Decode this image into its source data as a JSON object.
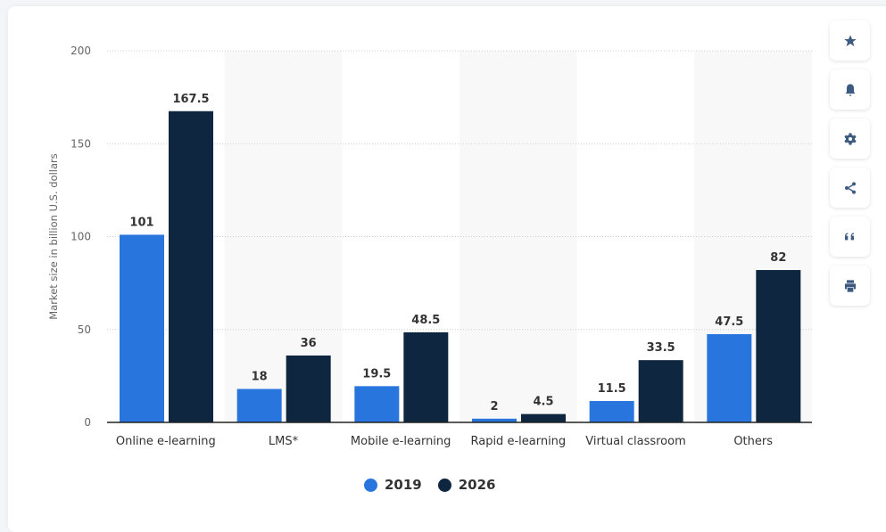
{
  "chart_data": {
    "type": "bar",
    "title": "",
    "xlabel": "",
    "ylabel": "Market size in billion U.S. dollars",
    "ylim": [
      0,
      200
    ],
    "yticks": [
      0,
      50,
      100,
      150,
      200
    ],
    "grid": true,
    "legend_position": "bottom-center",
    "categories": [
      "Online e-learning",
      "LMS*",
      "Mobile e-learning",
      "Rapid e-learning",
      "Virtual classroom",
      "Others"
    ],
    "series": [
      {
        "name": "2019",
        "color": "#2876dd",
        "values": [
          101,
          18,
          19.5,
          2,
          11.5,
          47.5
        ]
      },
      {
        "name": "2026",
        "color": "#0f2640",
        "values": [
          167.5,
          36,
          48.5,
          4.5,
          33.5,
          82
        ]
      }
    ]
  },
  "toolbar": [
    "star-icon",
    "bell-icon",
    "gear-icon",
    "share-icon",
    "quote-icon",
    "print-icon"
  ]
}
